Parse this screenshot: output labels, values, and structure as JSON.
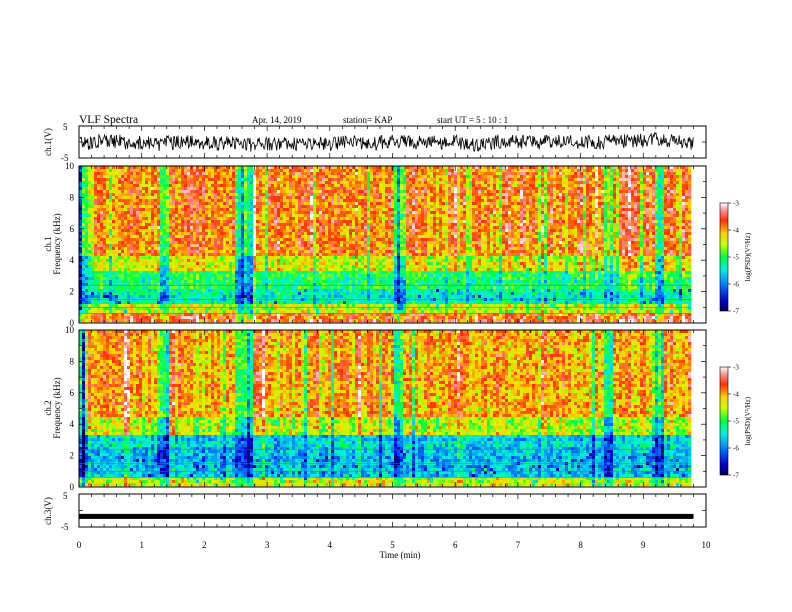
{
  "header": {
    "title": "VLF Spectra",
    "date": "Apr. 14, 2019",
    "station": "station= KAP",
    "start": "start UT =  5 : 10 : 1"
  },
  "chart_data": [
    {
      "type": "line",
      "panel": "ch1-waveform",
      "ylabel": "ch.1(V)",
      "ylim": [
        -5,
        5
      ],
      "yticks": [
        "5",
        "-5"
      ],
      "xlim": [
        0,
        10
      ],
      "description_values": {
        "mean": 0,
        "amplitude": 2.2
      }
    },
    {
      "type": "heatmap",
      "panel": "ch1-spectrogram",
      "ylabel": "ch.1\nFrequency (kHz)",
      "ylabel_lines": [
        "ch.1",
        "Frequency (kHz)"
      ],
      "ylim": [
        0,
        10
      ],
      "yticks": [
        "0",
        "2",
        "4",
        "6",
        "8",
        "10"
      ],
      "xlim": [
        0,
        9.8
      ],
      "colorbar": {
        "label": "log(PSD)(V²/Hz)",
        "ticks": [
          "-3",
          "-4",
          "-5",
          "-6",
          "-7"
        ],
        "range": [
          -7,
          -3
        ]
      },
      "bands_kHz_log_psd": [
        {
          "f": [
            0,
            0.5
          ],
          "value": -3.6
        },
        {
          "f": [
            0.5,
            1.2
          ],
          "value": -4.4
        },
        {
          "f": [
            1.2,
            2.0
          ],
          "value": -5.4
        },
        {
          "f": [
            2.0,
            3.2
          ],
          "value": -5.1
        },
        {
          "f": [
            3.2,
            4.2
          ],
          "value": -4.4
        },
        {
          "f": [
            4.2,
            10
          ],
          "value": -3.8
        }
      ],
      "bright_columns_min": [
        0.07,
        1.35,
        2.55,
        2.7,
        5.1,
        8.5,
        9.3
      ]
    },
    {
      "type": "heatmap",
      "panel": "ch2-spectrogram",
      "ylabel": "ch.2\nFrequency (kHz)",
      "ylabel_lines": [
        "ch.2",
        "Frequency (kHz)"
      ],
      "ylim": [
        0,
        10
      ],
      "yticks": [
        "0",
        "2",
        "4",
        "6",
        "8",
        "10"
      ],
      "xlim": [
        0,
        9.8
      ],
      "colorbar": {
        "label": "log(PSD)(V²/Hz)",
        "ticks": [
          "-3",
          "-4",
          "-5",
          "-6",
          "-7"
        ],
        "range": [
          -7,
          -3
        ]
      },
      "bands_kHz_log_psd": [
        {
          "f": [
            0,
            0.6
          ],
          "value": -4.4
        },
        {
          "f": [
            0.6,
            2.0
          ],
          "value": -5.7
        },
        {
          "f": [
            2.0,
            3.2
          ],
          "value": -5.6
        },
        {
          "f": [
            3.2,
            4.4
          ],
          "value": -4.5
        },
        {
          "f": [
            4.4,
            10
          ],
          "value": -4.0
        }
      ],
      "bright_columns_min": [
        0.07,
        1.35,
        2.55,
        2.7,
        5.1,
        8.5,
        9.3
      ]
    },
    {
      "type": "line",
      "panel": "ch3-waveform",
      "ylabel": "ch.3(V)",
      "ylim": [
        -5,
        5
      ],
      "yticks": [
        "5",
        "-5"
      ],
      "xlim": [
        0,
        10
      ],
      "value": -1.8
    }
  ],
  "xaxis": {
    "label": "Time (min)",
    "ticks": [
      "0",
      "1",
      "2",
      "3",
      "4",
      "5",
      "6",
      "7",
      "8",
      "9",
      "10"
    ],
    "range": [
      0,
      10
    ]
  },
  "colors": {
    "colormap": [
      "#0000b0",
      "#0050ff",
      "#00d0ff",
      "#00ff40",
      "#c8ff00",
      "#ffe000",
      "#ff7000",
      "#ff2000",
      "#ff9090",
      "#ffffff"
    ]
  }
}
